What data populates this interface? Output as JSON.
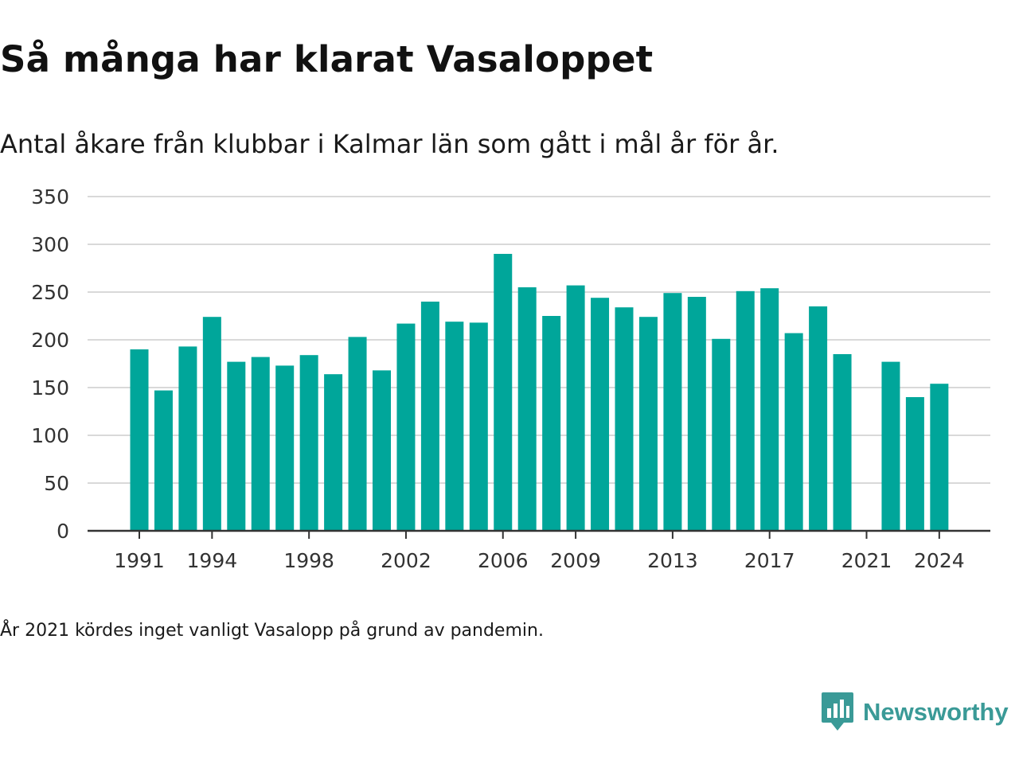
{
  "title": "Så många har klarat Vasaloppet",
  "subtitle": "Antal åkare från klubbar i Kalmar län som gått i mål år för år.",
  "footnote": "År 2021 kördes inget vanligt Vasalopp på grund av pandemin.",
  "brand": {
    "name": "Newsworthy",
    "icon": "newsworthy-logo-icon",
    "color": "#3a9a97"
  },
  "chart_data": {
    "type": "bar",
    "color": "#00a69a",
    "x": [
      1991,
      1992,
      1993,
      1994,
      1995,
      1996,
      1997,
      1998,
      1999,
      2000,
      2001,
      2002,
      2003,
      2004,
      2005,
      2006,
      2007,
      2008,
      2009,
      2010,
      2011,
      2012,
      2013,
      2014,
      2015,
      2016,
      2017,
      2018,
      2019,
      2020,
      2021,
      2022,
      2023,
      2024
    ],
    "values": [
      190,
      147,
      193,
      224,
      177,
      182,
      173,
      184,
      164,
      203,
      168,
      217,
      240,
      219,
      218,
      290,
      255,
      225,
      257,
      244,
      234,
      224,
      249,
      245,
      201,
      251,
      254,
      207,
      235,
      185,
      null,
      177,
      140,
      154
    ],
    "xticks": [
      "1991",
      "1994",
      "1998",
      "2002",
      "2006",
      "2009",
      "2013",
      "2017",
      "2021",
      "2024"
    ],
    "yticks": [
      "0",
      "50",
      "100",
      "150",
      "200",
      "250",
      "300",
      "350"
    ],
    "ylim": [
      0,
      350
    ],
    "grid": true,
    "legend": "none"
  }
}
